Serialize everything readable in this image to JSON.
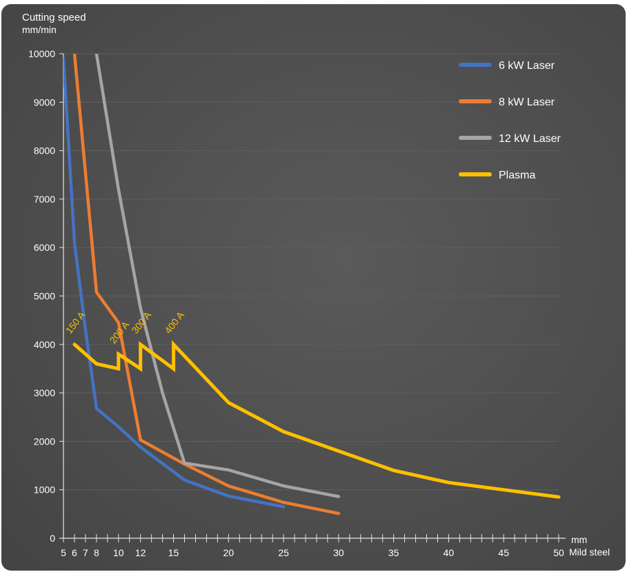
{
  "chart_data": {
    "type": "line",
    "ylabel_lines": [
      "Cutting speed",
      "mm/min"
    ],
    "xlabel_lines": [
      "mm",
      "Mild steel"
    ],
    "ylim": [
      0,
      10000
    ],
    "xlim": [
      5,
      50
    ],
    "y_ticks": [
      0,
      1000,
      2000,
      3000,
      4000,
      5000,
      6000,
      7000,
      8000,
      9000,
      10000
    ],
    "x_tick_labels": [
      {
        "x": 5,
        "label": "5"
      },
      {
        "x": 6,
        "label": "6"
      },
      {
        "x": 7,
        "label": "7"
      },
      {
        "x": 8,
        "label": "8"
      },
      {
        "x": 10,
        "label": "10"
      },
      {
        "x": 12,
        "label": "12"
      },
      {
        "x": 15,
        "label": "15"
      },
      {
        "x": 20,
        "label": "20"
      },
      {
        "x": 25,
        "label": "25"
      },
      {
        "x": 30,
        "label": "30"
      },
      {
        "x": 35,
        "label": "35"
      },
      {
        "x": 40,
        "label": "40"
      },
      {
        "x": 45,
        "label": "45"
      },
      {
        "x": 50,
        "label": "50"
      }
    ],
    "grid": "horizontal",
    "legend_position": "top-right",
    "series": [
      {
        "name": "6 kW Laser",
        "color": "#4472c4",
        "points": [
          [
            5,
            9900
          ],
          [
            6,
            6100
          ],
          [
            7,
            4300
          ],
          [
            8,
            2680
          ],
          [
            10,
            2300
          ],
          [
            12,
            1880
          ],
          [
            16,
            1200
          ],
          [
            20,
            870
          ],
          [
            25,
            650
          ]
        ]
      },
      {
        "name": "8 kW Laser",
        "color": "#ed7d31",
        "points": [
          [
            6,
            10000
          ],
          [
            8,
            5080
          ],
          [
            10,
            4450
          ],
          [
            12,
            2030
          ],
          [
            16,
            1530
          ],
          [
            20,
            1080
          ],
          [
            25,
            740
          ],
          [
            30,
            510
          ]
        ]
      },
      {
        "name": "12 kW Laser",
        "color": "#a5a5a5",
        "points": [
          [
            8,
            10000
          ],
          [
            10,
            7200
          ],
          [
            12,
            4750
          ],
          [
            14,
            3000
          ],
          [
            16,
            1550
          ],
          [
            20,
            1410
          ],
          [
            25,
            1080
          ],
          [
            30,
            860
          ]
        ]
      },
      {
        "name": "Plasma",
        "color": "#ffc000",
        "points": [
          [
            6,
            4000
          ],
          [
            8,
            3600
          ],
          [
            10,
            3500
          ],
          [
            10,
            3800
          ],
          [
            12,
            3500
          ],
          [
            12,
            4000
          ],
          [
            15,
            3500
          ],
          [
            15,
            4000
          ],
          [
            20,
            2800
          ],
          [
            25,
            2200
          ],
          [
            30,
            1800
          ],
          [
            35,
            1400
          ],
          [
            40,
            1150
          ],
          [
            45,
            1000
          ],
          [
            50,
            850
          ]
        ]
      }
    ],
    "annotations": [
      {
        "text": "150 A",
        "x": 6,
        "y": 4150
      },
      {
        "text": "200 A",
        "x": 10,
        "y": 3950
      },
      {
        "text": "300 A",
        "x": 12,
        "y": 4150
      },
      {
        "text": "400 A",
        "x": 15,
        "y": 4150
      }
    ]
  }
}
